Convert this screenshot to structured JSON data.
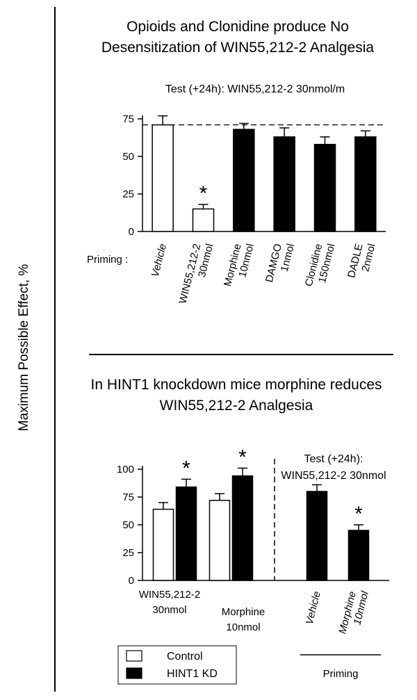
{
  "y_axis_label": "Maximum Possible Effect, %",
  "legend": [
    {
      "label": "Control",
      "fill": "#ffffff"
    },
    {
      "label": "HINT1 KD",
      "fill": "#000000"
    }
  ],
  "colors": {
    "control": "#ffffff",
    "hint1_kd": "#000000",
    "ink": "#000000"
  },
  "chart_data": [
    {
      "type": "bar",
      "title_lines": [
        "Opioids and Clonidine produce No",
        "Desensitization of WIN55,212-2 Analgesia"
      ],
      "subtitle": "Test (+24h):  WIN55,212-2   30nmol/m",
      "priming_label": "Priming :",
      "ylim": [
        0,
        75
      ],
      "yticks": [
        0,
        25,
        50,
        75
      ],
      "reference_line": {
        "y": 71,
        "style": "dashed"
      },
      "categories": [
        {
          "lines": [
            "Vehicle"
          ],
          "italic": true
        },
        {
          "lines": [
            "WIN55,212-2",
            "30nmol"
          ],
          "italic": false
        },
        {
          "lines": [
            "Morphine",
            "10nmol"
          ],
          "italic": false
        },
        {
          "lines": [
            "DAMGO",
            "1nmol"
          ],
          "italic": false
        },
        {
          "lines": [
            "Clonidine",
            "150nmol"
          ],
          "italic": false
        },
        {
          "lines": [
            "DADLE",
            "2nmol"
          ],
          "italic": false
        }
      ],
      "values": [
        71,
        15,
        68,
        63,
        58,
        63
      ],
      "errors": [
        6,
        3,
        4,
        6,
        5,
        4
      ],
      "fills": [
        "#ffffff",
        "#ffffff",
        "#000000",
        "#000000",
        "#000000",
        "#000000"
      ],
      "significance": [
        "",
        "*",
        "",
        "",
        "",
        ""
      ]
    },
    {
      "type": "bar",
      "title_lines": [
        "In HINT1 knockdown mice morphine reduces",
        "WIN55,212-2  Analgesia"
      ],
      "subtitle_lines": [
        "Test (+24h):",
        "WIN55,212-2  30nmol"
      ],
      "ylim": [
        0,
        100
      ],
      "yticks": [
        0,
        25,
        50,
        75,
        100
      ],
      "groups": [
        {
          "label_lines": [
            "WIN55,212-2",
            "30nmol"
          ],
          "italic": false
        },
        {
          "label_lines": [
            "Morphine",
            "10nmol"
          ],
          "italic": false
        },
        {
          "label_lines": [
            "Vehicle"
          ],
          "italic": true
        },
        {
          "label_lines": [
            "Morphine",
            "10nmol"
          ],
          "italic": true
        }
      ],
      "priming_label": "Priming",
      "bars": [
        {
          "group": 0,
          "series": "Control",
          "value": 64,
          "error": 6,
          "sig": ""
        },
        {
          "group": 0,
          "series": "HINT1 KD",
          "value": 84,
          "error": 7,
          "sig": "*"
        },
        {
          "group": 1,
          "series": "Control",
          "value": 72,
          "error": 6,
          "sig": ""
        },
        {
          "group": 1,
          "series": "HINT1 KD",
          "value": 94,
          "error": 7,
          "sig": "*"
        },
        {
          "group": 2,
          "series": "HINT1 KD",
          "value": 80,
          "error": 6,
          "sig": ""
        },
        {
          "group": 3,
          "series": "HINT1 KD",
          "value": 45,
          "error": 5,
          "sig": "*"
        }
      ]
    }
  ]
}
